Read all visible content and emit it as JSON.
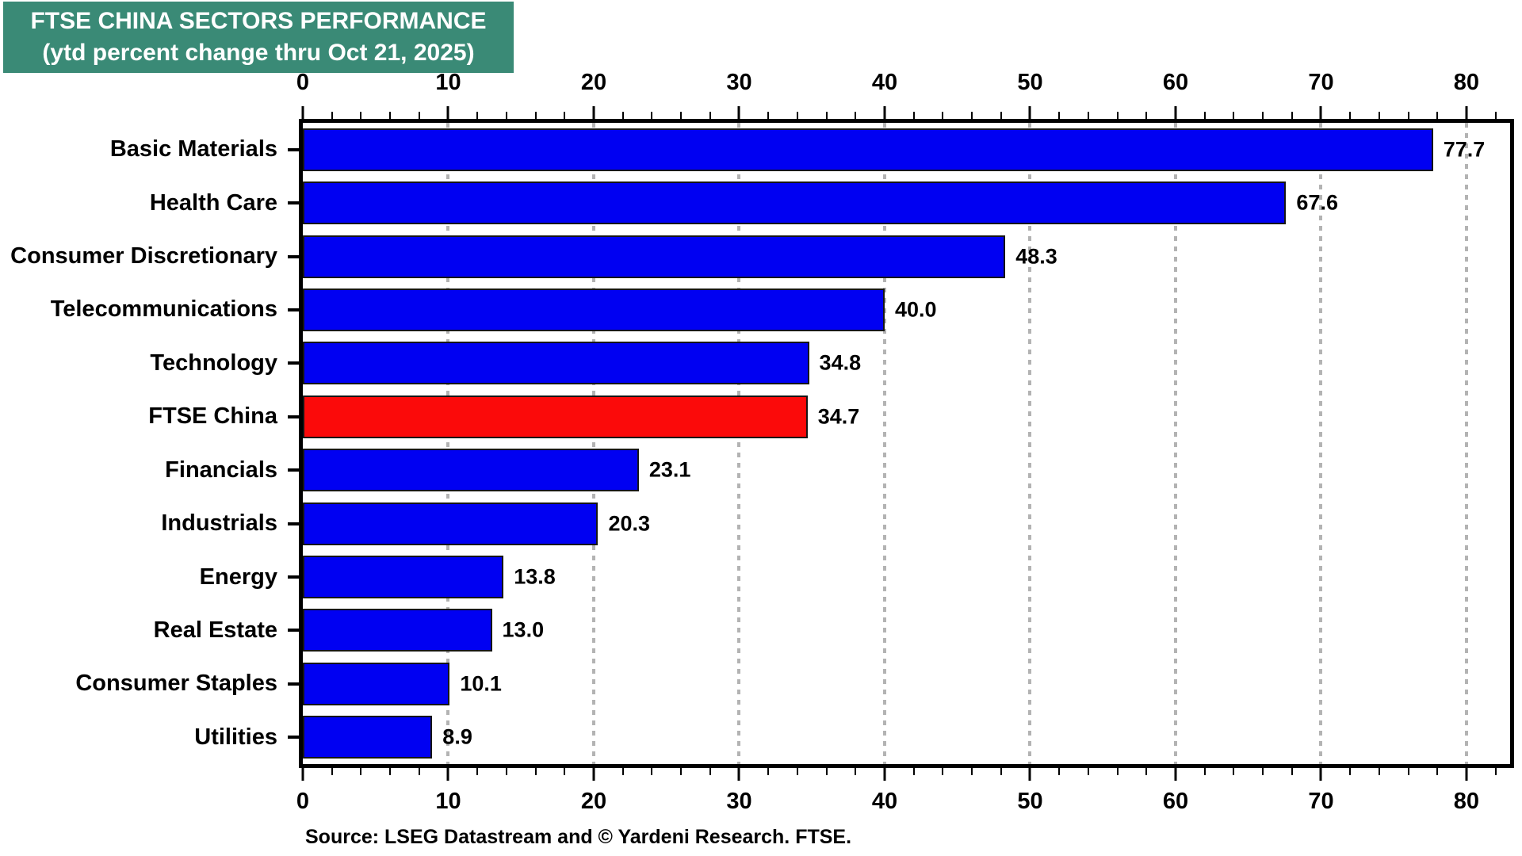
{
  "title": {
    "line1": "FTSE CHINA SECTORS PERFORMANCE",
    "line2": "(ytd percent change thru Oct 21, 2025)",
    "bg_color": "#3A8A76",
    "text_color": "#FFFFFF"
  },
  "source_note": "Source: LSEG Datastream and © Yardeni Research. FTSE.",
  "chart_data": {
    "type": "bar",
    "orientation": "horizontal",
    "title": "FTSE CHINA SECTORS PERFORMANCE (ytd percent change thru Oct 21, 2025)",
    "categories": [
      "Basic Materials",
      "Health Care",
      "Consumer Discretionary",
      "Telecommunications",
      "Technology",
      "FTSE China",
      "Financials",
      "Industrials",
      "Energy",
      "Real Estate",
      "Consumer Staples",
      "Utilities"
    ],
    "values": [
      77.7,
      67.6,
      48.3,
      40.0,
      34.8,
      34.7,
      23.1,
      20.3,
      13.8,
      13.0,
      10.1,
      8.9
    ],
    "value_labels": [
      "77.7",
      "67.6",
      "48.3",
      "40.0",
      "34.8",
      "34.7",
      "23.1",
      "20.3",
      "13.8",
      "13.0",
      "10.1",
      "8.9"
    ],
    "highlight_category": "FTSE China",
    "default_bar_color": "#0000F2",
    "highlight_bar_color": "#FB0A0A",
    "bar_border_color": "#151515",
    "xlabel": "",
    "ylabel": "",
    "xlim": [
      0,
      83
    ],
    "x_major_ticks": [
      0,
      10,
      20,
      30,
      40,
      50,
      60,
      70,
      80
    ],
    "x_minor_tick_step": 2,
    "tick_label_rows": "top and bottom",
    "grid": "vertical dotted gridlines at major ticks",
    "gridline_color": "#B3B3B3",
    "legend": "none"
  }
}
